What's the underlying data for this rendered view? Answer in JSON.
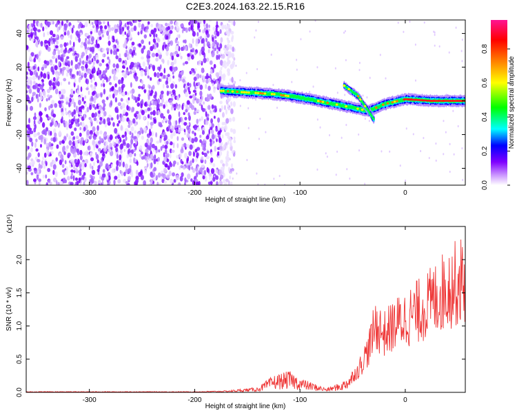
{
  "title": "C2E3.2024.163.22.15.R16",
  "chart_data": [
    {
      "type": "heatmap",
      "xlabel": "Height of straight line (km)",
      "ylabel": "Frequency (Hz)",
      "xlim": [
        -360,
        57
      ],
      "ylim": [
        -50,
        48
      ],
      "x_ticks": [
        -300,
        -200,
        -100,
        0
      ],
      "y_ticks": [
        -40,
        -20,
        0,
        20,
        40
      ],
      "colorbar": {
        "label": "Normalized spectral amplitude",
        "range": [
          0,
          0.97
        ],
        "ticks": [
          0.0,
          0.2,
          0.4,
          0.6,
          0.8
        ],
        "colormap": [
          "#ffffff",
          "#cc99ff",
          "#7f00ff",
          "#0000ff",
          "#00ffff",
          "#00ff00",
          "#ffff00",
          "#ff8000",
          "#ff0000",
          "#ff1493"
        ]
      },
      "features": {
        "noise_region_x": [
          -360,
          -170
        ],
        "main_echo_trace": [
          [
            -175,
            6
          ],
          [
            -150,
            5
          ],
          [
            -125,
            4
          ],
          [
            -100,
            2
          ],
          [
            -75,
            -1
          ],
          [
            -50,
            -4
          ],
          [
            -35,
            -6
          ],
          [
            -20,
            -2
          ],
          [
            0,
            1
          ],
          [
            25,
            0
          ],
          [
            57,
            0
          ]
        ],
        "secondary_echo_trace": [
          [
            -58,
            9
          ],
          [
            -45,
            3
          ],
          [
            -35,
            -6
          ],
          [
            -30,
            -11
          ]
        ]
      }
    },
    {
      "type": "line",
      "xlabel": "Height of straight line (km)",
      "ylabel": "SNR (10 * v/v)",
      "scale_label": "(x10⁴)",
      "xlim": [
        -360,
        57
      ],
      "ylim": [
        0,
        2.5
      ],
      "x_ticks": [
        -300,
        -200,
        -100,
        0
      ],
      "y_ticks": [
        0.0,
        0.5,
        1.0,
        1.5,
        2.0
      ],
      "series": [
        {
          "color": "#ee3333",
          "envelope": [
            [
              -360,
              0.01
            ],
            [
              -200,
              0.01
            ],
            [
              -170,
              0.02
            ],
            [
              -140,
              0.06
            ],
            [
              -125,
              0.2
            ],
            [
              -110,
              0.25
            ],
            [
              -100,
              0.17
            ],
            [
              -90,
              0.12
            ],
            [
              -75,
              0.05
            ],
            [
              -60,
              0.12
            ],
            [
              -45,
              0.35
            ],
            [
              -35,
              0.7
            ],
            [
              -28,
              1.1
            ],
            [
              -20,
              0.95
            ],
            [
              -10,
              1.1
            ],
            [
              0,
              1.2
            ],
            [
              10,
              1.3
            ],
            [
              20,
              1.4
            ],
            [
              30,
              1.55
            ],
            [
              40,
              1.7
            ],
            [
              57,
              1.85
            ]
          ]
        }
      ]
    }
  ]
}
